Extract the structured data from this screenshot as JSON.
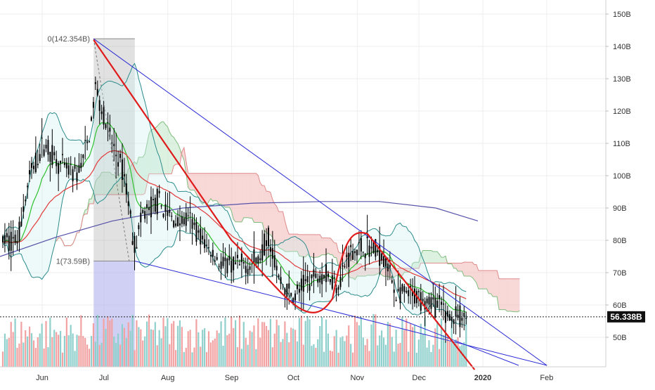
{
  "chart_data": {
    "type": "candlestick",
    "title": "",
    "xlabel": "",
    "ylabel": "",
    "x_ticks": [
      "Jun",
      "Jul",
      "Aug",
      "Sep",
      "Oct",
      "Nov",
      "Dec",
      "2020",
      "Feb"
    ],
    "y_ticks": [
      "50B",
      "60B",
      "70B",
      "80B",
      "90B",
      "100B",
      "110B",
      "120B",
      "130B",
      "140B",
      "150B"
    ],
    "ylim": [
      40,
      154
    ],
    "current_price_label": "56.338B",
    "current_price": 56.338,
    "fib_labels": [
      {
        "text": "0(142.354B)",
        "value": 142.354
      },
      {
        "text": "1(73.59B)",
        "value": 73.59
      }
    ],
    "grid": true,
    "colors": {
      "candle": "#000000",
      "wedge_lines": "#2b2bd6",
      "curve": "#e01b1b",
      "ema_fast": "#2ec22e",
      "ema_slow": "#e23b3b",
      "ma_long": "#5552a8",
      "bollinger": "#2c8c8c",
      "cloud_bear": "#f3b6b6",
      "cloud_bull": "#bfe6c4",
      "volume_up": "#8fd0cc",
      "volume_down": "#f2a2a2",
      "fib_box": "#b9b9b9",
      "fib_box_low": "#b0b0ee"
    },
    "price_path": [
      {
        "date": "2019-05-20",
        "value": 80
      },
      {
        "date": "2019-05-26",
        "value": 100
      },
      {
        "date": "2019-06-02",
        "value": 110
      },
      {
        "date": "2019-06-10",
        "value": 103
      },
      {
        "date": "2019-06-18",
        "value": 100
      },
      {
        "date": "2019-06-24",
        "value": 112
      },
      {
        "date": "2019-06-27",
        "value": 128
      },
      {
        "date": "2019-07-01",
        "value": 118
      },
      {
        "date": "2019-07-06",
        "value": 108
      },
      {
        "date": "2019-07-11",
        "value": 100
      },
      {
        "date": "2019-07-16",
        "value": 78
      },
      {
        "date": "2019-07-20",
        "value": 88
      },
      {
        "date": "2019-07-27",
        "value": 92
      },
      {
        "date": "2019-08-04",
        "value": 86
      },
      {
        "date": "2019-08-12",
        "value": 86
      },
      {
        "date": "2019-08-20",
        "value": 78
      },
      {
        "date": "2019-08-28",
        "value": 72
      },
      {
        "date": "2019-09-06",
        "value": 72
      },
      {
        "date": "2019-09-14",
        "value": 74
      },
      {
        "date": "2019-09-19",
        "value": 82
      },
      {
        "date": "2019-09-24",
        "value": 68
      },
      {
        "date": "2019-10-01",
        "value": 62
      },
      {
        "date": "2019-10-07",
        "value": 67
      },
      {
        "date": "2019-10-15",
        "value": 70
      },
      {
        "date": "2019-10-23",
        "value": 67
      },
      {
        "date": "2019-10-28",
        "value": 76
      },
      {
        "date": "2019-11-05",
        "value": 78
      },
      {
        "date": "2019-11-10",
        "value": 77
      },
      {
        "date": "2019-11-15",
        "value": 74
      },
      {
        "date": "2019-11-20",
        "value": 63
      },
      {
        "date": "2019-11-26",
        "value": 63
      },
      {
        "date": "2019-12-03",
        "value": 62
      },
      {
        "date": "2019-12-10",
        "value": 60
      },
      {
        "date": "2019-12-17",
        "value": 56
      },
      {
        "date": "2019-12-24",
        "value": 56
      }
    ]
  }
}
